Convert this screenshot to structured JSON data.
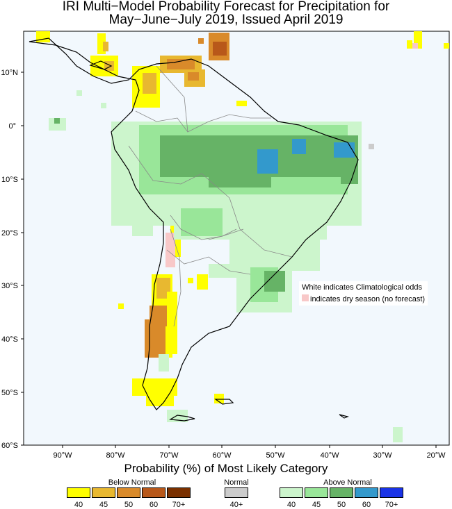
{
  "title": {
    "line1": "IRI Multi−Model Probability Forecast for Precipitation for",
    "line2": "May−June−July 2019, Issued April 2019"
  },
  "axes": {
    "lat_labels": [
      "10°N",
      "0°",
      "10°S",
      "20°S",
      "30°S",
      "40°S",
      "50°S",
      "60°S"
    ],
    "lon_labels": [
      "90°W",
      "80°W",
      "70°W",
      "60°W",
      "50°W",
      "40°W",
      "30°W",
      "20°W"
    ]
  },
  "note": {
    "line1": "White indicates Climatological odds",
    "line2": "indicates dry season (no forecast)"
  },
  "legend": {
    "title": "Probability (%) of Most Likely Category",
    "below": {
      "label": "Below Normal",
      "ticks": [
        "40",
        "45",
        "50",
        "60",
        "70+"
      ],
      "colors": [
        "#ffff00",
        "#e8b830",
        "#d98a2a",
        "#b8581a",
        "#7a3000"
      ]
    },
    "normal": {
      "label": "Normal",
      "ticks": [
        "40+"
      ],
      "colors": [
        "#cccccc"
      ]
    },
    "above": {
      "label": "Above Normal",
      "ticks": [
        "40",
        "45",
        "50",
        "60",
        "70+"
      ],
      "colors": [
        "#ccf5cc",
        "#99e699",
        "#66b366",
        "#3399cc",
        "#1a33e6"
      ]
    }
  },
  "colors": {
    "land_bg": "#f2f8fd",
    "dry_season": "#f8c8c8",
    "coast": "#000000",
    "border": "#888888"
  }
}
